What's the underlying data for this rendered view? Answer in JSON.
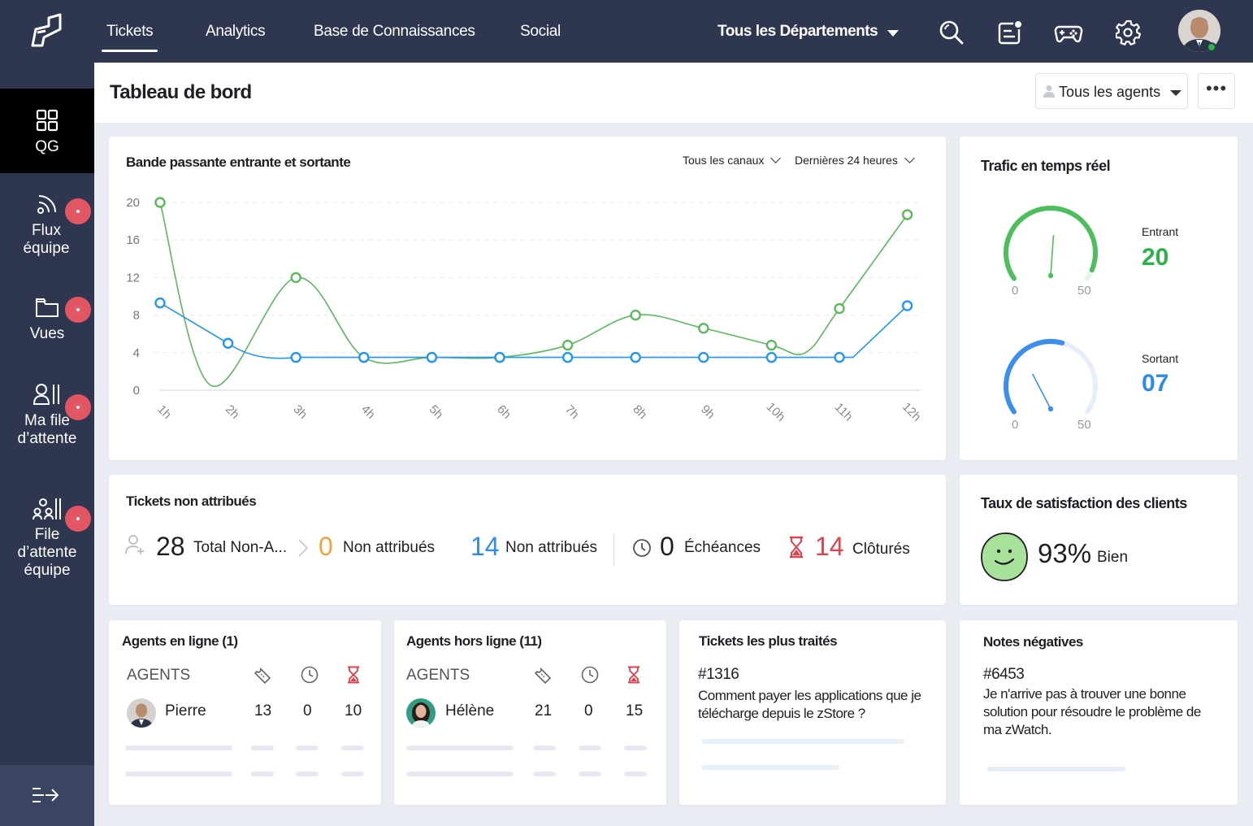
{
  "nav": {
    "tabs": [
      {
        "label": "Tickets"
      },
      {
        "label": "Analytics"
      },
      {
        "label": "Base de Connaissances"
      },
      {
        "label": "Social"
      }
    ],
    "department": "Tous les Départements",
    "icons": [
      "search-icon",
      "notes-icon",
      "gamepad-icon",
      "gear-icon"
    ]
  },
  "sidebar": {
    "items": [
      {
        "label": "QG",
        "icon": "grid-icon"
      },
      {
        "label": "Flux équipe",
        "icon": "feed-icon"
      },
      {
        "label": "Vues",
        "icon": "folder-icon"
      },
      {
        "label": "Ma file d’attente",
        "icon": "user-queue-icon"
      },
      {
        "label": "File d’attente équipe",
        "icon": "team-queue-icon"
      }
    ],
    "collapse_icon": "expand-icon"
  },
  "header": {
    "title": "Tableau de bord",
    "agent_filter": "Tous les agents",
    "more": "•••"
  },
  "bandwidth": {
    "title": "Bande passante entrante et sortante",
    "channel_filter": "Tous les canaux",
    "time_filter": "Dernières 24 heures"
  },
  "chart_data": {
    "type": "line",
    "title": "Bande passante entrante et sortante",
    "categories": [
      "1h",
      "2h",
      "3h",
      "4h",
      "5h",
      "6h",
      "7h",
      "8h",
      "9h",
      "10h",
      "11h",
      "12h"
    ],
    "ylim": [
      0,
      20
    ],
    "yticks": [
      "20",
      "16",
      "12",
      "8",
      "4",
      "0"
    ],
    "grid": true,
    "series": [
      {
        "color": "#5cb85c",
        "values": [
          20,
          null,
          12,
          3.5,
          3.5,
          3.5,
          4.8,
          8,
          6.6,
          4.8,
          8.7,
          18.7
        ]
      },
      {
        "color": "#2196f3",
        "values": [
          9.3,
          5,
          3.5,
          3.5,
          3.5,
          3.5,
          3.5,
          3.5,
          3.5,
          3.5,
          3.5,
          9
        ]
      }
    ],
    "series_points": [
      {
        "color": "#5cb85c",
        "points": [
          [
            1,
            20
          ],
          [
            3,
            12
          ],
          [
            4,
            3.5
          ],
          [
            5,
            3.5
          ],
          [
            6,
            3.5
          ],
          [
            7,
            4.8
          ],
          [
            8,
            8
          ],
          [
            9,
            6.6
          ],
          [
            10,
            4.8
          ],
          [
            11,
            8.7
          ],
          [
            12,
            18.7
          ]
        ]
      },
      {
        "color": "#2196f3",
        "points": [
          [
            1,
            9.3
          ],
          [
            2,
            5
          ],
          [
            3,
            3.5
          ],
          [
            4,
            3.5
          ],
          [
            5,
            3.5
          ],
          [
            6,
            3.5
          ],
          [
            7,
            3.5
          ],
          [
            8,
            3.5
          ],
          [
            9,
            3.5
          ],
          [
            10,
            3.5
          ],
          [
            11,
            3.5
          ],
          [
            12,
            9
          ]
        ]
      }
    ]
  },
  "traffic": {
    "title": "Trafic en temps réel",
    "incoming_label": "Entrant",
    "incoming_value": "20",
    "incoming_color": "#2bb34a",
    "outgoing_label": "Sortant",
    "outgoing_value": "07",
    "outgoing_color": "#2f8be8",
    "scale_min": "0",
    "scale_max": "50",
    "incoming_level": 20,
    "outgoing_level": 7
  },
  "unassigned": {
    "title": "Tickets non attribués",
    "total_value": "28",
    "total_label": "Total Non-A...",
    "unassigned_value": "0",
    "unassigned_label": "Non attribués",
    "unassigned2_value": "14",
    "unassigned2_label": "Non attribués",
    "due_value": "0",
    "due_label": "Échéances",
    "closed_value": "14",
    "closed_label": "Clôturés",
    "colors": {
      "orange": "#f5a13a",
      "blue": "#2f8be8",
      "red": "#e2414b"
    }
  },
  "satisfaction": {
    "title": "Taux de satisfaction des clients",
    "value": "93%",
    "label": "Bien"
  },
  "agents_online": {
    "title": "Agents en ligne (1)",
    "header": "AGENTS",
    "rows": [
      {
        "name": "Pierre",
        "a": "13",
        "b": "0",
        "c": "10"
      }
    ]
  },
  "agents_offline": {
    "title": "Agents hors ligne (11)",
    "header": "AGENTS",
    "rows": [
      {
        "name": "Hélène",
        "a": "21",
        "b": "0",
        "c": "15"
      }
    ]
  },
  "top_tickets": {
    "title": "Tickets les plus traités",
    "id": "#1316",
    "subject": "Comment payer les applications que je télécharge depuis le zStore ?"
  },
  "negative_notes": {
    "title": "Notes négatives",
    "id": "#6453",
    "text": "Je n'arrive pas à trouver une bonne solution pour résoudre le problème de ma zWatch."
  }
}
